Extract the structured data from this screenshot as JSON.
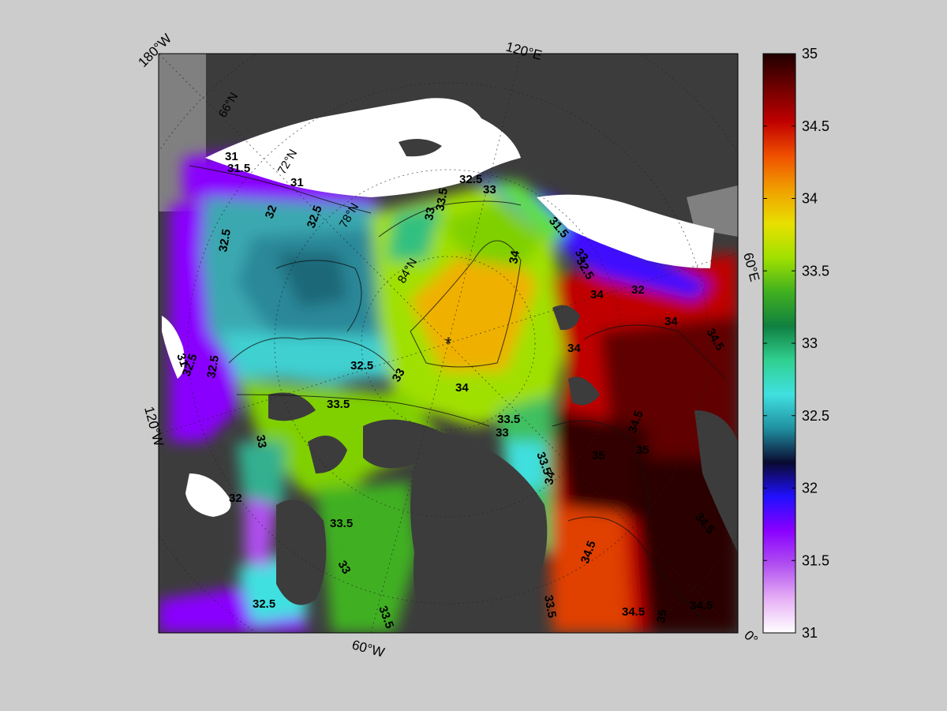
{
  "map": {
    "center_marker": "*",
    "corner_labels": {
      "top_left": "180°W",
      "top": "120°E",
      "right": "60°E",
      "left": "120°W",
      "bottom": "60°W",
      "bottom_right": "0°"
    },
    "latitude_labels": [
      "66°N",
      "72°N",
      "78°N",
      "84°N"
    ],
    "contour_labels": [
      "31",
      "31.5",
      "31",
      "32",
      "32.5",
      "32.5",
      "32.5",
      "32.5",
      "33",
      "33.5",
      "34",
      "34",
      "34",
      "32.5",
      "33",
      "31.5",
      "33",
      "34",
      "32",
      "34",
      "34.5",
      "33.5",
      "33",
      "33.5",
      "34",
      "34.5",
      "35",
      "35",
      "34.5",
      "34.5",
      "34.5",
      "33.5",
      "33",
      "33",
      "33.5",
      "32.5",
      "32",
      "33.5",
      "31",
      "32.5",
      "33",
      "32.5",
      "33.5",
      "34.5",
      "35"
    ],
    "land_color": "#3c3c3c",
    "ice_color": "#ffffff"
  },
  "colorbar": {
    "min": 31,
    "max": 35,
    "tick_labels": [
      "35",
      "34.5",
      "34",
      "33.5",
      "33",
      "32.5",
      "32",
      "31.5",
      "31"
    ],
    "colormap": [
      "#ffffff",
      "#e6b0f5",
      "#b050f0",
      "#8a00ff",
      "#2010ff",
      "#0a0a30",
      "#2090a0",
      "#40e0e0",
      "#30d090",
      "#108040",
      "#40b020",
      "#a0e000",
      "#e8e000",
      "#f0a000",
      "#f05000",
      "#c00000",
      "#700000",
      "#200000"
    ]
  }
}
